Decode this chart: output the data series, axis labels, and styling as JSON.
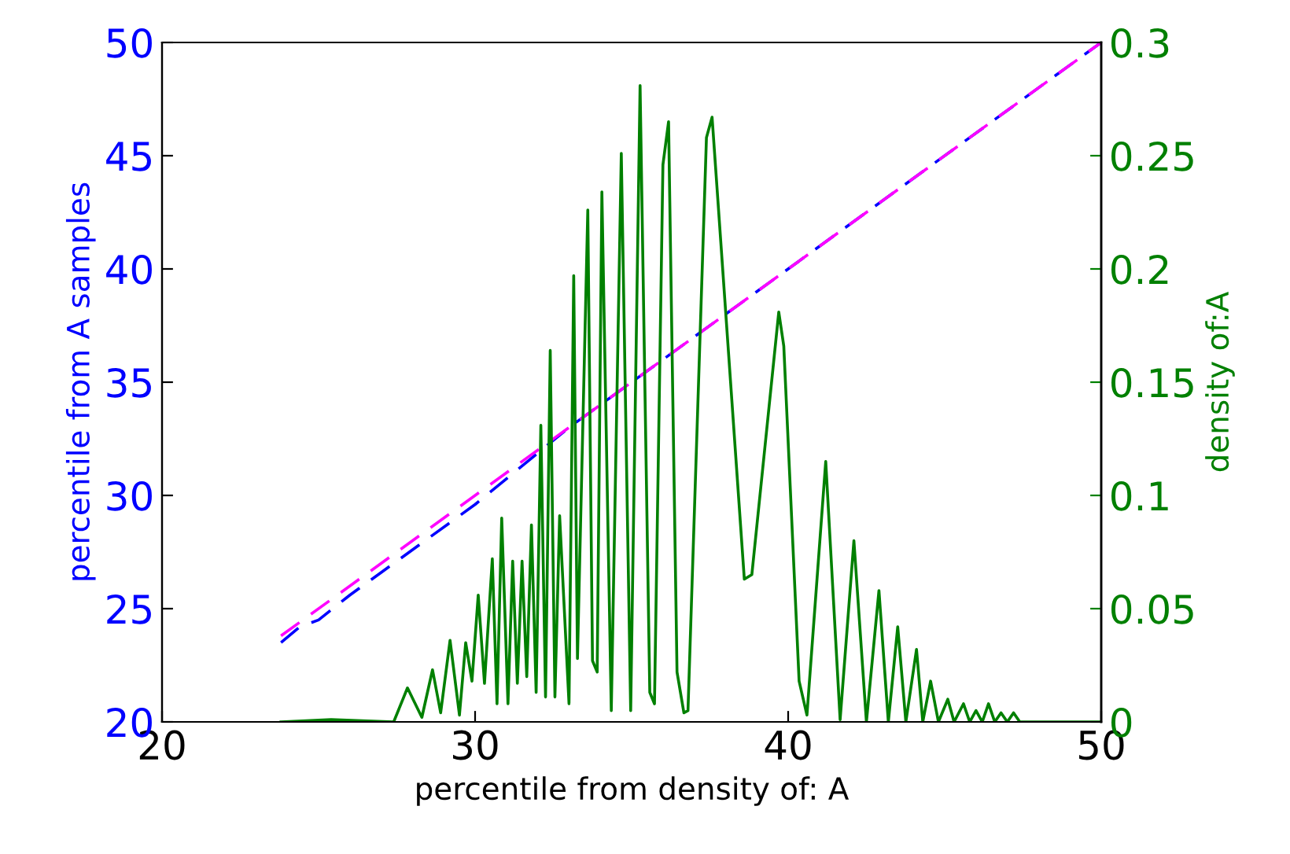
{
  "chart_data": {
    "type": "line",
    "xlabel": "percentile from density of: A",
    "ylabel": "percentile from A samples",
    "y2label": "density of:A",
    "xlim": [
      20,
      50
    ],
    "xticks": [
      20,
      30,
      40,
      50
    ],
    "ylim": [
      20,
      50
    ],
    "yticks": [
      20,
      25,
      30,
      35,
      40,
      45,
      50
    ],
    "y2lim": [
      0,
      0.3
    ],
    "y2ticks": [
      0,
      0.05,
      0.1,
      0.15,
      0.2,
      0.25,
      0.3
    ],
    "grid": false,
    "legend": false,
    "marker": "none",
    "series": [
      {
        "color": "#0000ff",
        "line_style": "dashed",
        "x": [
          23.8,
          24.4,
          25,
          26,
          27,
          30,
          33,
          37,
          40,
          50
        ],
        "values": [
          23.5,
          24.2,
          24.5,
          25.6,
          26.6,
          29.6,
          33.0,
          37,
          40,
          50
        ]
      },
      {
        "color": "#ff00ff",
        "line_style": "dashed",
        "x": [
          23.8,
          50
        ],
        "values": [
          23.8,
          50
        ]
      },
      {
        "color": "#008000",
        "line_style": "solid",
        "axis": "y2",
        "x": [
          23.8,
          25.4,
          27.4,
          27.84,
          28.3,
          28.64,
          28.9,
          29.2,
          29.5,
          29.7,
          29.9,
          30.1,
          30.3,
          30.55,
          30.7,
          30.85,
          31.05,
          31.2,
          31.35,
          31.5,
          31.65,
          31.8,
          31.95,
          32.1,
          32.25,
          32.4,
          32.55,
          32.7,
          33.0,
          33.15,
          33.27,
          33.6,
          33.75,
          33.9,
          34.05,
          34.35,
          34.67,
          34.97,
          35.27,
          35.58,
          35.73,
          36.0,
          36.18,
          36.45,
          36.67,
          36.8,
          37.39,
          37.57,
          38.6,
          38.84,
          39.7,
          39.86,
          40.35,
          40.6,
          41.2,
          41.66,
          42.1,
          42.5,
          42.9,
          43.2,
          43.5,
          43.76,
          44.1,
          44.3,
          44.55,
          44.8,
          45.1,
          45.3,
          45.6,
          45.8,
          46.0,
          46.2,
          46.4,
          46.6,
          46.8,
          47.0,
          47.2,
          47.4,
          50
        ],
        "values": [
          0,
          0.001,
          0,
          0.015,
          0.002,
          0.023,
          0.004,
          0.036,
          0.003,
          0.035,
          0.018,
          0.056,
          0.017,
          0.072,
          0.008,
          0.09,
          0.008,
          0.071,
          0.017,
          0.071,
          0.02,
          0.087,
          0.013,
          0.131,
          0.011,
          0.164,
          0.011,
          0.091,
          0.008,
          0.197,
          0.028,
          0.226,
          0.027,
          0.022,
          0.234,
          0.005,
          0.251,
          0.005,
          0.281,
          0.013,
          0.008,
          0.246,
          0.265,
          0.022,
          0.004,
          0.005,
          0.258,
          0.267,
          0.063,
          0.065,
          0.181,
          0.166,
          0.018,
          0.003,
          0.115,
          0.001,
          0.08,
          0,
          0.058,
          0,
          0.042,
          0,
          0.032,
          0,
          0.018,
          0,
          0.01,
          0,
          0.008,
          0,
          0.005,
          0,
          0.008,
          0,
          0.004,
          0,
          0.004,
          0,
          0
        ]
      }
    ]
  }
}
